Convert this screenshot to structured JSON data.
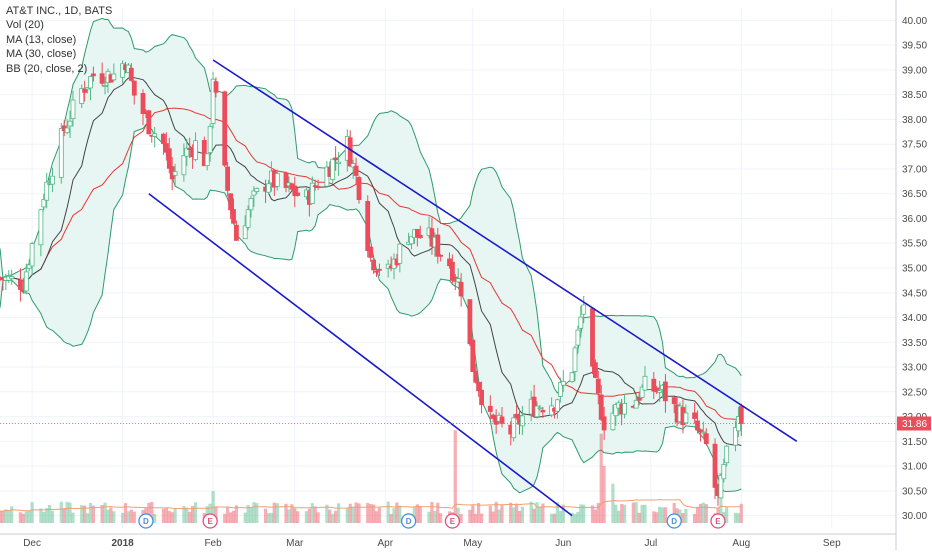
{
  "legend": {
    "title": "AT&T INC., 1D, BATS",
    "vol": "Vol (20)",
    "ma13": "MA (13, close)",
    "ma30": "MA (30, close)",
    "bb": "BB (20, close, 2)"
  },
  "colors": {
    "up": "#53b987",
    "down": "#eb4d5c",
    "ma13": "#444444",
    "ma30": "#e53935",
    "bb_band": "#2e9b6b",
    "bb_fill": "#e3f4f1",
    "channel": "#1a1acc",
    "vol_ma": "#f0a070",
    "price_tag": "#eb4d5c",
    "dividend": "#4a90d9",
    "earnings": "#e0507a",
    "grid": "#f0f3fa"
  },
  "chart_data": {
    "type": "candlestick",
    "title": "AT&T INC., 1D, BATS",
    "ylim": [
      29.75,
      40.25
    ],
    "yticks": [
      "40.00",
      "39.50",
      "39.00",
      "38.50",
      "38.00",
      "37.50",
      "37.00",
      "36.50",
      "36.00",
      "35.50",
      "35.00",
      "34.50",
      "34.00",
      "33.50",
      "33.00",
      "32.50",
      "32.00",
      "31.50",
      "31.00",
      "30.50",
      "30.00"
    ],
    "x_start": "2017-11-20",
    "xticks": [
      {
        "date": "2017-12-01",
        "label": "Dec"
      },
      {
        "date": "2018-01-01",
        "label": "2018"
      },
      {
        "date": "2018-02-01",
        "label": "Feb"
      },
      {
        "date": "2018-03-01",
        "label": "Mar"
      },
      {
        "date": "2018-04-01",
        "label": "Apr"
      },
      {
        "date": "2018-05-01",
        "label": "May"
      },
      {
        "date": "2018-06-01",
        "label": "Jun"
      },
      {
        "date": "2018-07-01",
        "label": "Jul"
      },
      {
        "date": "2018-08-01",
        "label": "Aug"
      },
      {
        "date": "2018-09-01",
        "label": "Sep"
      }
    ],
    "x_end": "2018-09-23",
    "last_price": "31.86",
    "anchors": [
      [
        "2017-11-20",
        34.8
      ],
      [
        "2017-11-28",
        34.7
      ],
      [
        "2017-12-05",
        36.5
      ],
      [
        "2017-12-12",
        37.8
      ],
      [
        "2017-12-18",
        38.6
      ],
      [
        "2017-12-22",
        38.9
      ],
      [
        "2017-12-29",
        38.9
      ],
      [
        "2018-01-02",
        39.2
      ],
      [
        "2018-01-05",
        38.5
      ],
      [
        "2018-01-10",
        37.9
      ],
      [
        "2018-01-15",
        37.5
      ],
      [
        "2018-01-18",
        36.8
      ],
      [
        "2018-01-22",
        37.3
      ],
      [
        "2018-01-26",
        37.5
      ],
      [
        "2018-01-30",
        37.1
      ],
      [
        "2018-02-01",
        38.9
      ],
      [
        "2018-02-05",
        36.9
      ],
      [
        "2018-02-09",
        35.6
      ],
      [
        "2018-02-14",
        36.3
      ],
      [
        "2018-02-20",
        36.8
      ],
      [
        "2018-02-26",
        36.6
      ],
      [
        "2018-03-05",
        36.4
      ],
      [
        "2018-03-12",
        37.0
      ],
      [
        "2018-03-19",
        37.5
      ],
      [
        "2018-03-23",
        36.6
      ],
      [
        "2018-03-27",
        35.2
      ],
      [
        "2018-04-02",
        34.9
      ],
      [
        "2018-04-09",
        35.7
      ],
      [
        "2018-04-16",
        35.6
      ],
      [
        "2018-04-23",
        35.1
      ],
      [
        "2018-04-27",
        34.6
      ],
      [
        "2018-05-01",
        33.0
      ],
      [
        "2018-05-07",
        31.9
      ],
      [
        "2018-05-14",
        31.7
      ],
      [
        "2018-05-21",
        32.2
      ],
      [
        "2018-05-29",
        32.3
      ],
      [
        "2018-06-04",
        33.0
      ],
      [
        "2018-06-08",
        34.3
      ],
      [
        "2018-06-11",
        32.8
      ],
      [
        "2018-06-15",
        31.9
      ],
      [
        "2018-06-20",
        32.2
      ],
      [
        "2018-06-25",
        32.3
      ],
      [
        "2018-06-29",
        32.6
      ],
      [
        "2018-07-05",
        32.5
      ],
      [
        "2018-07-10",
        32.1
      ],
      [
        "2018-07-16",
        31.8
      ],
      [
        "2018-07-20",
        31.4
      ],
      [
        "2018-07-24",
        30.3
      ],
      [
        "2018-07-27",
        31.2
      ],
      [
        "2018-07-31",
        32.1
      ],
      [
        "2018-08-01",
        31.86
      ]
    ],
    "channel_upper": [
      [
        "2018-02-01",
        39.2
      ],
      [
        "2018-08-20",
        31.5
      ]
    ],
    "channel_lower": [
      [
        "2018-01-10",
        36.5
      ],
      [
        "2018-06-04",
        30.0
      ]
    ],
    "markers": [
      {
        "date": "2018-01-09",
        "letter": "D",
        "kind": "dividend"
      },
      {
        "date": "2018-01-31",
        "letter": "E",
        "kind": "earnings"
      },
      {
        "date": "2018-04-09",
        "letter": "D",
        "kind": "dividend"
      },
      {
        "date": "2018-04-24",
        "letter": "E",
        "kind": "earnings"
      },
      {
        "date": "2018-07-09",
        "letter": "D",
        "kind": "dividend"
      },
      {
        "date": "2018-07-24",
        "letter": "E",
        "kind": "earnings"
      }
    ],
    "volume_spikes": [
      {
        "date": "2018-02-01",
        "rel": 0.9
      },
      {
        "date": "2018-04-25",
        "rel": 2.6
      },
      {
        "date": "2018-06-14",
        "rel": 2.5
      },
      {
        "date": "2018-06-15",
        "rel": 1.6
      },
      {
        "date": "2018-06-18",
        "rel": 1.1
      },
      {
        "date": "2018-07-25",
        "rel": 1.4
      }
    ]
  }
}
